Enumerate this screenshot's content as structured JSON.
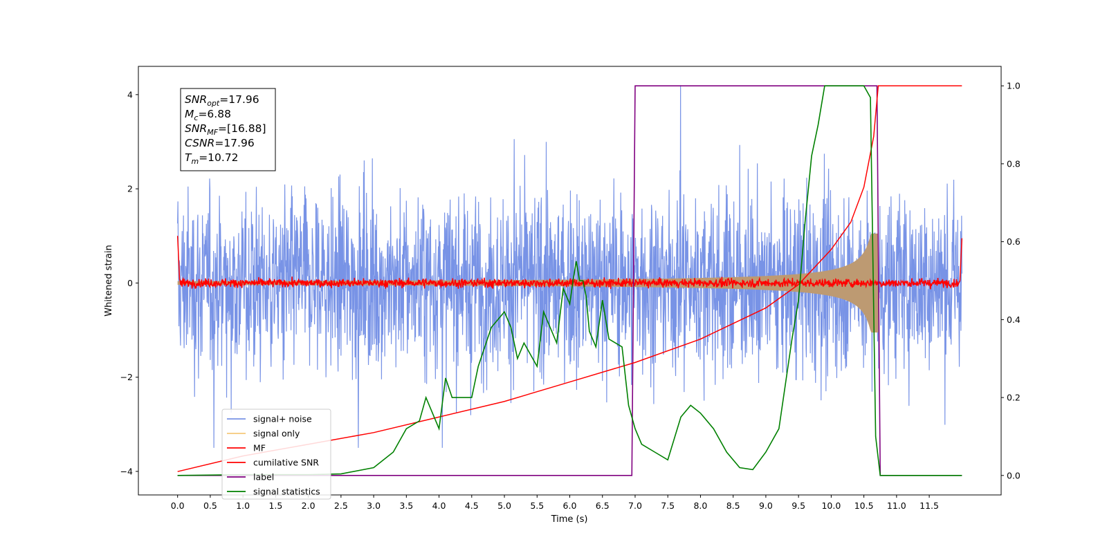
{
  "chart_data": {
    "type": "line",
    "xlabel": "Time (s)",
    "ylabel": "Whitened strain",
    "xlim": [
      -0.6,
      12.6
    ],
    "ylim": [
      -4.5,
      4.6
    ],
    "y2lim": [
      -0.05,
      1.05
    ],
    "grid": false,
    "legend_placement": "lower-left",
    "x_ticks": [
      "0.0",
      "0.5",
      "1.0",
      "1.5",
      "2.0",
      "2.5",
      "3.0",
      "3.5",
      "4.0",
      "4.5",
      "5.0",
      "5.5",
      "6.0",
      "6.5",
      "7.0",
      "7.5",
      "8.0",
      "8.5",
      "9.0",
      "9.5",
      "10.0",
      "10.5",
      "11.0",
      "11.5"
    ],
    "y_ticks": [
      4,
      2,
      0,
      -2,
      -4
    ],
    "y2_ticks": [
      "1.0",
      "0.8",
      "0.6",
      "0.4",
      "0.2",
      "0.0"
    ],
    "annotation": {
      "lines": [
        {
          "var": "SNR",
          "sub": "opt",
          "value": "=17.96"
        },
        {
          "var": "M",
          "sub": "c",
          "value": "=6.88"
        },
        {
          "var": "SNR",
          "sub": "MF",
          "value": "=[16.88]"
        },
        {
          "var": "CSNR",
          "sub": "",
          "value": "=17.96"
        },
        {
          "var": "T",
          "sub": "m",
          "value": "=10.72"
        }
      ]
    },
    "series": [
      {
        "name": "signal+ noise",
        "color": "#7893e6",
        "axis": "left",
        "kind": "noise",
        "amplitude_range": [
          -3.5,
          4.2
        ]
      },
      {
        "name": "signal only",
        "color": "#f5c87a",
        "axis": "left",
        "kind": "chirp",
        "merger_time": 10.72,
        "peak_amplitude": 1.05
      },
      {
        "name": "MF",
        "color": "#ff0000",
        "axis": "left",
        "kind": "matched-filter",
        "start_value": 1.0,
        "end_value": 0.95
      },
      {
        "name": "cumilative SNR",
        "color": "#ff0000",
        "axis": "right",
        "x": [
          0.0,
          1.0,
          2.0,
          3.0,
          4.0,
          5.0,
          6.0,
          7.0,
          8.0,
          9.0,
          9.5,
          10.0,
          10.3,
          10.5,
          10.65,
          10.72,
          12.0
        ],
        "y": [
          0.01,
          0.05,
          0.08,
          0.11,
          0.15,
          0.19,
          0.24,
          0.29,
          0.35,
          0.43,
          0.49,
          0.58,
          0.65,
          0.74,
          0.87,
          1.0,
          1.0
        ]
      },
      {
        "name": "label",
        "color": "#800080",
        "axis": "right",
        "x": [
          0.0,
          6.95,
          7.0,
          10.7,
          10.75,
          12.0
        ],
        "y": [
          0.0,
          0.0,
          1.0,
          1.0,
          0.0,
          0.0
        ]
      },
      {
        "name": "signal statistics",
        "color": "#008000",
        "axis": "right",
        "x": [
          0.0,
          1.0,
          2.0,
          2.5,
          3.0,
          3.3,
          3.5,
          3.7,
          3.8,
          4.0,
          4.1,
          4.2,
          4.3,
          4.5,
          4.6,
          4.8,
          4.9,
          5.0,
          5.1,
          5.2,
          5.3,
          5.5,
          5.6,
          5.8,
          5.9,
          6.0,
          6.05,
          6.1,
          6.15,
          6.2,
          6.25,
          6.3,
          6.4,
          6.5,
          6.6,
          6.8,
          6.9,
          7.0,
          7.1,
          7.3,
          7.5,
          7.7,
          7.85,
          8.0,
          8.2,
          8.4,
          8.6,
          8.8,
          9.0,
          9.2,
          9.4,
          9.5,
          9.6,
          9.7,
          9.8,
          9.9,
          10.0,
          10.5,
          10.6,
          10.68,
          10.75,
          10.8,
          12.0
        ],
        "y": [
          0.0,
          0.002,
          0.002,
          0.004,
          0.02,
          0.06,
          0.12,
          0.14,
          0.2,
          0.12,
          0.25,
          0.2,
          0.2,
          0.2,
          0.28,
          0.38,
          0.4,
          0.42,
          0.38,
          0.3,
          0.34,
          0.28,
          0.42,
          0.34,
          0.48,
          0.44,
          0.5,
          0.55,
          0.5,
          0.5,
          0.46,
          0.37,
          0.33,
          0.45,
          0.35,
          0.33,
          0.18,
          0.12,
          0.08,
          0.06,
          0.04,
          0.15,
          0.18,
          0.16,
          0.12,
          0.06,
          0.02,
          0.015,
          0.06,
          0.12,
          0.35,
          0.45,
          0.65,
          0.82,
          0.9,
          1.0,
          1.0,
          1.0,
          0.97,
          0.1,
          0.0,
          0.0,
          0.0
        ]
      }
    ]
  }
}
